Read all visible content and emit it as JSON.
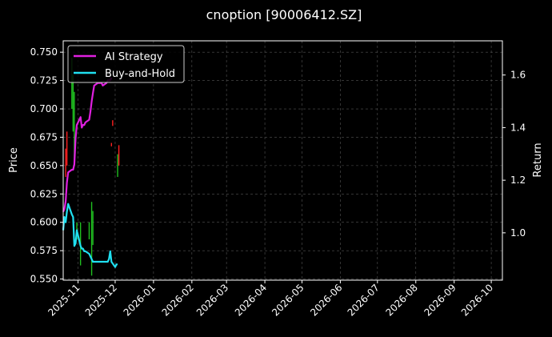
{
  "chart_data": {
    "type": "line",
    "title": "cnoption [90006412.SZ]",
    "ylabel_left": "Price",
    "ylabel_right": "Return",
    "y_left_lim": [
      0.549,
      0.76
    ],
    "y_left_ticks": [
      "0.550",
      "0.575",
      "0.600",
      "0.625",
      "0.650",
      "0.675",
      "0.700",
      "0.725",
      "0.750"
    ],
    "y_right_lim": [
      0.82,
      1.73
    ],
    "y_right_ticks": [
      "1.0",
      "1.2",
      "1.4",
      "1.6"
    ],
    "x_lim": [
      "2025-10-20",
      "2026-10-10"
    ],
    "x_ticks": [
      "2025-11",
      "2025-12",
      "2026-01",
      "2026-02",
      "2026-03",
      "2026-04",
      "2026-05",
      "2026-06",
      "2026-07",
      "2026-08",
      "2026-09",
      "2026-10"
    ],
    "grid": true,
    "legend_position": "top-left",
    "series": [
      {
        "name": "AI Strategy",
        "color": "#e020e0",
        "axis": "right",
        "x": [
          "2025-10-20",
          "2025-10-21",
          "2025-10-22",
          "2025-10-23",
          "2025-10-24",
          "2025-10-27",
          "2025-10-28",
          "2025-10-29",
          "2025-10-30",
          "2025-10-31",
          "2025-11-03",
          "2025-11-04",
          "2025-11-05",
          "2025-11-06",
          "2025-11-07",
          "2025-11-10",
          "2025-11-11",
          "2025-11-12",
          "2025-11-13",
          "2025-11-14",
          "2025-11-17",
          "2025-11-18",
          "2025-11-19",
          "2025-11-20",
          "2025-11-21",
          "2025-11-24",
          "2025-11-25",
          "2025-11-26",
          "2025-11-27",
          "2025-11-28"
        ],
        "values": [
          1.08,
          1.09,
          1.12,
          1.19,
          1.23,
          1.24,
          1.24,
          1.26,
          1.36,
          1.41,
          1.44,
          1.4,
          1.41,
          1.41,
          1.42,
          1.43,
          1.46,
          1.5,
          1.53,
          1.56,
          1.57,
          1.57,
          1.57,
          1.57,
          1.56,
          1.57,
          1.58,
          1.58,
          1.58,
          1.59
        ]
      },
      {
        "name": "Buy-and-Hold",
        "color": "#20e0f0",
        "axis": "right",
        "x": [
          "2025-10-20",
          "2025-10-21",
          "2025-10-22",
          "2025-10-23",
          "2025-10-24",
          "2025-10-27",
          "2025-10-28",
          "2025-10-29",
          "2025-10-30",
          "2025-10-31",
          "2025-11-03",
          "2025-11-04",
          "2025-11-05",
          "2025-11-06",
          "2025-11-07",
          "2025-11-10",
          "2025-11-11",
          "2025-11-12",
          "2025-11-13",
          "2025-11-14",
          "2025-11-17",
          "2025-11-18",
          "2025-11-19",
          "2025-11-20",
          "2025-11-21",
          "2025-11-24",
          "2025-11-25",
          "2025-11-26",
          "2025-11-27",
          "2025-11-28",
          "2025-12-01",
          "2025-12-02",
          "2025-12-03"
        ],
        "values": [
          1.01,
          1.06,
          1.04,
          1.08,
          1.11,
          1.07,
          1.06,
          0.95,
          0.96,
          1.01,
          0.95,
          0.94,
          0.94,
          0.93,
          0.93,
          0.92,
          0.91,
          0.9,
          0.89,
          0.89,
          0.89,
          0.89,
          0.89,
          0.89,
          0.89,
          0.89,
          0.89,
          0.9,
          0.93,
          0.89,
          0.87,
          0.88,
          0.88
        ]
      }
    ],
    "candles": [
      {
        "date": "2025-10-22",
        "low": 0.64,
        "high": 0.665,
        "color": "#ff2020"
      },
      {
        "date": "2025-10-23",
        "low": 0.65,
        "high": 0.68,
        "color": "#ff2020"
      },
      {
        "date": "2025-10-27",
        "low": 0.7,
        "high": 0.745,
        "color": "#20c020"
      },
      {
        "date": "2025-10-28",
        "low": 0.68,
        "high": 0.73,
        "color": "#20c020"
      },
      {
        "date": "2025-10-29",
        "low": 0.65,
        "high": 0.715,
        "color": "#20c020"
      },
      {
        "date": "2025-10-31",
        "low": 0.585,
        "high": 0.6,
        "color": "#20c020"
      },
      {
        "date": "2025-11-03",
        "low": 0.562,
        "high": 0.6,
        "color": "#20c020"
      },
      {
        "date": "2025-11-10",
        "low": 0.585,
        "high": 0.6,
        "color": "#20c020"
      },
      {
        "date": "2025-11-12",
        "low": 0.553,
        "high": 0.618,
        "color": "#20c020"
      },
      {
        "date": "2025-11-13",
        "low": 0.58,
        "high": 0.61,
        "color": "#20c020"
      },
      {
        "date": "2025-11-28",
        "low": 0.667,
        "high": 0.67,
        "color": "#ff2020"
      },
      {
        "date": "2025-11-29",
        "low": 0.685,
        "high": 0.69,
        "color": "#ff2020"
      },
      {
        "date": "2025-12-03",
        "low": 0.64,
        "high": 0.66,
        "color": "#20c020"
      },
      {
        "date": "2025-12-04",
        "low": 0.65,
        "high": 0.668,
        "color": "#ff2020"
      }
    ]
  }
}
